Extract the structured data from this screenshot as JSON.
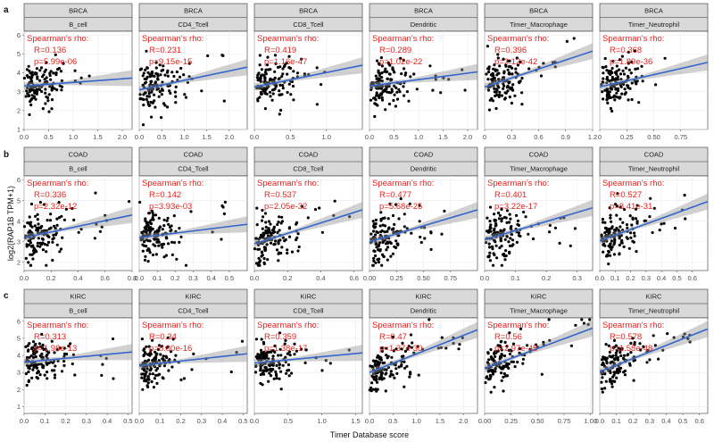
{
  "chart_data": {
    "type": "scatter",
    "xlabel": "Timer Database score",
    "ylabel": "log2(RAP1B TPM+1)",
    "annotation_header": "Spearman's rho:",
    "rows": [
      {
        "tag": "a",
        "cancer": "BRCA",
        "ylim": [
          1,
          6.2
        ],
        "yticks": [
          1,
          2,
          3,
          4,
          5,
          6
        ],
        "panels": [
          {
            "cell": "B_cell",
            "R": "R=0.136",
            "p": "p=5.99e-06",
            "xlim": [
              0,
              2.2
            ],
            "xticks": [
              "0.0",
              "0.5",
              "1.0",
              "1.5",
              "2.0"
            ],
            "xtick_values": [
              0,
              0.5,
              1.0,
              1.5,
              2.0
            ],
            "fit_y": [
              3.3,
              3.72
            ]
          },
          {
            "cell": "CD4_Tcell",
            "R": "R=0.231",
            "p": "p=9.15e-15",
            "xlim": [
              0,
              2.4
            ],
            "xticks": [
              "0.0",
              "0.5",
              "1.0",
              "1.5",
              "2.0"
            ],
            "xtick_values": [
              0,
              0.5,
              1.0,
              1.5,
              2.0
            ],
            "fit_y": [
              3.1,
              4.3
            ]
          },
          {
            "cell": "CD8_Tcell",
            "R": "R=0.419",
            "p": "p=1.16e-47",
            "xlim": [
              0,
              1.5
            ],
            "xticks": [
              "0.0",
              "0.5",
              "1.0"
            ],
            "xtick_values": [
              0,
              0.5,
              1.0
            ],
            "fit_y": [
              3.25,
              4.4
            ]
          },
          {
            "cell": "Dendritic",
            "R": "R=0.289",
            "p": "p=1.02e-22",
            "xlim": [
              0,
              2.2
            ],
            "xticks": [
              "0.0",
              "0.5",
              "1.0",
              "1.5",
              "2.0"
            ],
            "xtick_values": [
              0,
              0.5,
              1.0,
              1.5,
              2.0
            ],
            "fit_y": [
              3.3,
              4.05
            ]
          },
          {
            "cell": "Timer_Macrophage",
            "R": "R=0.396",
            "p": "p=2.12e-42",
            "xlim": [
              0,
              1.2
            ],
            "xticks": [
              "0",
              "0.3",
              "0.6",
              "0.9",
              "1.2"
            ],
            "xtick_values": [
              0,
              0.3,
              0.6,
              0.9,
              1.2
            ],
            "fit_y": [
              3.25,
              5.15
            ]
          },
          {
            "cell": "Timer_Neutrophil",
            "R": "R=0.368",
            "p": "p=1.89e-36",
            "xlim": [
              0,
              1.0
            ],
            "xticks": [
              "0",
              "0.25",
              "0.50",
              "0.75"
            ],
            "xtick_values": [
              0,
              0.25,
              0.5,
              0.75
            ],
            "fit_y": [
              3.25,
              4.55
            ]
          }
        ]
      },
      {
        "tag": "b",
        "cancer": "COAD",
        "ylim": [
          1.6,
          6.2
        ],
        "yticks": [
          2,
          3,
          4,
          5,
          6
        ],
        "panels": [
          {
            "cell": "B_cell",
            "R": "R=0.336",
            "p": "p=2.32e-12",
            "xlim": [
              0,
              0.8
            ],
            "xticks": [
              "0.0",
              "0.2",
              "0.4",
              "0.6",
              "0.8"
            ],
            "xtick_values": [
              0,
              0.2,
              0.4,
              0.6,
              0.8
            ],
            "fit_y": [
              3.2,
              4.3
            ]
          },
          {
            "cell": "CD4_Tcell",
            "R": "R=0.142",
            "p": "p=3.93e-03",
            "xlim": [
              0,
              0.6
            ],
            "xticks": [
              "0.0",
              "0.1",
              "0.2",
              "0.3",
              "0.4",
              "0.5"
            ],
            "xtick_values": [
              0,
              0.1,
              0.2,
              0.3,
              0.4,
              0.5
            ],
            "fit_y": [
              3.2,
              3.85
            ]
          },
          {
            "cell": "CD8_Tcell",
            "R": "R=0.537",
            "p": "p=2.05e-32",
            "xlim": [
              0,
              0.65
            ],
            "xticks": [
              "0.0",
              "0.2",
              "0.4",
              "0.6"
            ],
            "xtick_values": [
              0,
              0.2,
              0.4,
              0.6
            ],
            "fit_y": [
              2.9,
              4.55
            ]
          },
          {
            "cell": "Dendritic",
            "R": "R=0.477",
            "p": "p=5.68e-25",
            "xlim": [
              0,
              1.0
            ],
            "xticks": [
              "0.00",
              "0.25",
              "0.50",
              "0.75"
            ],
            "xtick_values": [
              0,
              0.25,
              0.5,
              0.75
            ],
            "fit_y": [
              3.0,
              4.55
            ]
          },
          {
            "cell": "Timer_Macrophage",
            "R": "R=0.401",
            "p": "p=3.22e-17",
            "xlim": [
              0,
              0.35
            ],
            "xticks": [
              "0.0",
              "0.1",
              "0.2",
              "0.3"
            ],
            "xtick_values": [
              0,
              0.1,
              0.2,
              0.3
            ],
            "fit_y": [
              3.1,
              4.65
            ]
          },
          {
            "cell": "Timer_Neutrophil",
            "R": "R=0.527",
            "p": "p=8.41e-31",
            "xlim": [
              0,
              0.7
            ],
            "xticks": [
              "0.0",
              "0.1",
              "0.2",
              "0.3",
              "0.4",
              "0.5",
              "0.6"
            ],
            "xtick_values": [
              0,
              0.1,
              0.2,
              0.3,
              0.4,
              0.5,
              0.6
            ],
            "fit_y": [
              3.05,
              4.95
            ]
          }
        ]
      },
      {
        "tag": "c",
        "cancer": "KIRC",
        "ylim": [
          0.6,
          6.2
        ],
        "yticks": [
          1,
          2,
          3,
          4,
          5,
          6
        ],
        "panels": [
          {
            "cell": "B_cell",
            "R": "R=0.313",
            "p": "p=1.98e-13",
            "xlim": [
              0,
              0.52
            ],
            "xticks": [
              "0.0",
              "0.1",
              "0.2",
              "0.3",
              "0.4",
              "0.5"
            ],
            "xtick_values": [
              0,
              0.1,
              0.2,
              0.3,
              0.4,
              0.5
            ],
            "fit_y": [
              3.6,
              4.2
            ]
          },
          {
            "cell": "CD4_Tcell",
            "R": "R=0.34",
            "p": "p=8.80e-16",
            "xlim": [
              0,
              0.52
            ],
            "xticks": [
              "0.0",
              "0.1",
              "0.2",
              "0.3",
              "0.4",
              "0.5"
            ],
            "xtick_values": [
              0,
              0.1,
              0.2,
              0.3,
              0.4,
              0.5
            ],
            "fit_y": [
              3.4,
              4.1
            ]
          },
          {
            "cell": "CD8_Tcell",
            "R": "R=0.359",
            "p": "p=1.38e-17",
            "xlim": [
              0,
              1.6
            ],
            "xticks": [
              "0.0",
              "0.5",
              "1.0",
              "1.5"
            ],
            "xtick_values": [
              0,
              0.5,
              1.0,
              1.5
            ],
            "fit_y": [
              3.55,
              4.15
            ]
          },
          {
            "cell": "Dendritic",
            "R": "R=0.47",
            "p": "p=1.37e-30",
            "xlim": [
              0,
              2.3
            ],
            "xticks": [
              "0.0",
              "0.5",
              "1.0",
              "1.5",
              "2.0"
            ],
            "xtick_values": [
              0,
              0.5,
              1.0,
              1.5,
              2.0
            ],
            "fit_y": [
              3.0,
              5.5
            ]
          },
          {
            "cell": "Timer_Macrophage",
            "R": "R=0.56",
            "p": "p=2.97e-45",
            "xlim": [
              0,
              1.02
            ],
            "xticks": [
              "0.00",
              "0.25",
              "0.50",
              "0.75",
              "1.00"
            ],
            "xtick_values": [
              0,
              0.25,
              0.5,
              0.75,
              1.0
            ],
            "fit_y": [
              3.25,
              5.6
            ]
          },
          {
            "cell": "Timer_Neutrophil",
            "R": "R=0.578",
            "p": "p=1.58e-48",
            "xlim": [
              0,
              0.65
            ],
            "xticks": [
              "0.0",
              "0.1",
              "0.2",
              "0.3",
              "0.4",
              "0.5",
              "0.6"
            ],
            "xtick_values": [
              0,
              0.1,
              0.2,
              0.3,
              0.4,
              0.5,
              0.6
            ],
            "fit_y": [
              3.05,
              5.55
            ]
          }
        ]
      }
    ]
  }
}
